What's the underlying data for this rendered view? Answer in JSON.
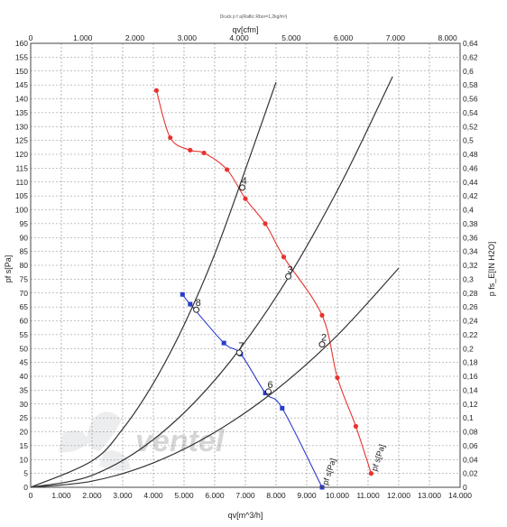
{
  "chart_data": {
    "type": "line",
    "title": "Druck p f a(Raflic Rbor=1,2kg/m³)",
    "x_bottom": {
      "label": "qv[m^3/h]",
      "range": [
        0,
        14000
      ],
      "ticks": [
        {
          "v": 0,
          "t": "0"
        },
        {
          "v": 1000,
          "t": "1.000"
        },
        {
          "v": 2000,
          "t": "2.000"
        },
        {
          "v": 3000,
          "t": "3.000"
        },
        {
          "v": 4000,
          "t": "4.000"
        },
        {
          "v": 5000,
          "t": "5.000"
        },
        {
          "v": 6000,
          "t": "6.000"
        },
        {
          "v": 7000,
          "t": "7.000"
        },
        {
          "v": 8000,
          "t": "8.000"
        },
        {
          "v": 9000,
          "t": "9.000"
        },
        {
          "v": 10000,
          "t": "10.000"
        },
        {
          "v": 11000,
          "t": "11.000"
        },
        {
          "v": 12000,
          "t": "12.000"
        },
        {
          "v": 13000,
          "t": "13.000"
        },
        {
          "v": 14000,
          "t": "14.000"
        }
      ]
    },
    "x_top": {
      "label": "qv[cfm]",
      "range": [
        0,
        8240
      ],
      "ticks": [
        {
          "v": 0,
          "t": "0"
        },
        {
          "v": 1000,
          "t": "1.000"
        },
        {
          "v": 2000,
          "t": "2.000"
        },
        {
          "v": 3000,
          "t": "3.000"
        },
        {
          "v": 4000,
          "t": "4.000"
        },
        {
          "v": 5000,
          "t": "5.000"
        },
        {
          "v": 6000,
          "t": "6.000"
        },
        {
          "v": 7000,
          "t": "7.000"
        },
        {
          "v": 8000,
          "t": "8.000"
        }
      ]
    },
    "y_left": {
      "label": "pf s[Pa]",
      "range": [
        0,
        160
      ],
      "ticks": [
        {
          "v": 0,
          "t": "0"
        },
        {
          "v": 5,
          "t": "5"
        },
        {
          "v": 10,
          "t": "10"
        },
        {
          "v": 15,
          "t": "15"
        },
        {
          "v": 20,
          "t": "20"
        },
        {
          "v": 25,
          "t": "25"
        },
        {
          "v": 30,
          "t": "30"
        },
        {
          "v": 35,
          "t": "35"
        },
        {
          "v": 40,
          "t": "40"
        },
        {
          "v": 45,
          "t": "45"
        },
        {
          "v": 50,
          "t": "50"
        },
        {
          "v": 55,
          "t": "55"
        },
        {
          "v": 60,
          "t": "60"
        },
        {
          "v": 65,
          "t": "65"
        },
        {
          "v": 70,
          "t": "70"
        },
        {
          "v": 75,
          "t": "75"
        },
        {
          "v": 80,
          "t": "80"
        },
        {
          "v": 85,
          "t": "85"
        },
        {
          "v": 90,
          "t": "90"
        },
        {
          "v": 95,
          "t": "95"
        },
        {
          "v": 100,
          "t": "100"
        },
        {
          "v": 105,
          "t": "105"
        },
        {
          "v": 110,
          "t": "110"
        },
        {
          "v": 115,
          "t": "115"
        },
        {
          "v": 120,
          "t": "120"
        },
        {
          "v": 125,
          "t": "125"
        },
        {
          "v": 130,
          "t": "130"
        },
        {
          "v": 135,
          "t": "135"
        },
        {
          "v": 140,
          "t": "140"
        },
        {
          "v": 145,
          "t": "145"
        },
        {
          "v": 150,
          "t": "150"
        },
        {
          "v": 155,
          "t": "155"
        },
        {
          "v": 160,
          "t": "160"
        }
      ]
    },
    "y_right": {
      "label": "p fs_E[IN H2O]",
      "range": [
        0,
        0.64
      ],
      "ticks": [
        {
          "v": 0,
          "t": "0"
        },
        {
          "v": 0.02,
          "t": "0,02"
        },
        {
          "v": 0.04,
          "t": "0,04"
        },
        {
          "v": 0.06,
          "t": "0,06"
        },
        {
          "v": 0.08,
          "t": "0,08"
        },
        {
          "v": 0.1,
          "t": "0,1"
        },
        {
          "v": 0.12,
          "t": "0,12"
        },
        {
          "v": 0.14,
          "t": "0,14"
        },
        {
          "v": 0.16,
          "t": "0,16"
        },
        {
          "v": 0.18,
          "t": "0,18"
        },
        {
          "v": 0.2,
          "t": "0,2"
        },
        {
          "v": 0.22,
          "t": "0,22"
        },
        {
          "v": 0.24,
          "t": "0,24"
        },
        {
          "v": 0.26,
          "t": "0,26"
        },
        {
          "v": 0.28,
          "t": "0,28"
        },
        {
          "v": 0.3,
          "t": "0,3"
        },
        {
          "v": 0.32,
          "t": "0,32"
        },
        {
          "v": 0.34,
          "t": "0,34"
        },
        {
          "v": 0.36,
          "t": "0,36"
        },
        {
          "v": 0.38,
          "t": "0,38"
        },
        {
          "v": 0.4,
          "t": "0,4"
        },
        {
          "v": 0.42,
          "t": "0,42"
        },
        {
          "v": 0.44,
          "t": "0,44"
        },
        {
          "v": 0.46,
          "t": "0,46"
        },
        {
          "v": 0.48,
          "t": "0,48"
        },
        {
          "v": 0.5,
          "t": "0,5"
        },
        {
          "v": 0.52,
          "t": "0,52"
        },
        {
          "v": 0.54,
          "t": "0,54"
        },
        {
          "v": 0.56,
          "t": "0,56"
        },
        {
          "v": 0.58,
          "t": "0,58"
        },
        {
          "v": 0.6,
          "t": "0,6"
        },
        {
          "v": 0.62,
          "t": "0,62"
        },
        {
          "v": 0.64,
          "t": "0,64"
        }
      ]
    },
    "grid": true,
    "series": [
      {
        "name": "pf s[Pa]",
        "color": "#e8332f",
        "marker": "circle",
        "points": [
          [
            4100,
            143
          ],
          [
            4550,
            126
          ],
          [
            5200,
            121.5
          ],
          [
            5650,
            120.5
          ],
          [
            6400,
            114.5
          ],
          [
            7000,
            104
          ],
          [
            7650,
            95
          ],
          [
            8250,
            83
          ],
          [
            9500,
            62
          ],
          [
            10000,
            39.5
          ],
          [
            10600,
            22
          ],
          [
            11100,
            5
          ]
        ]
      },
      {
        "name": "pf s[Pa]",
        "color": "#2a3bd0",
        "marker": "square",
        "points": [
          [
            4950,
            69.5
          ],
          [
            5200,
            66
          ],
          [
            6300,
            52
          ],
          [
            6850,
            48
          ],
          [
            7650,
            34
          ],
          [
            8200,
            28.5
          ],
          [
            9500,
            0
          ]
        ]
      },
      {
        "name": "",
        "color": "#333333",
        "marker": "none",
        "points": [
          [
            0,
            0
          ],
          [
            2000,
            9.5
          ],
          [
            3000,
            21
          ],
          [
            4000,
            37.5
          ],
          [
            5000,
            58.5
          ],
          [
            6000,
            84
          ],
          [
            7000,
            114.5
          ],
          [
            8000,
            146
          ]
        ]
      },
      {
        "name": "",
        "color": "#333333",
        "marker": "none",
        "points": [
          [
            0,
            0
          ],
          [
            2000,
            4.3
          ],
          [
            4000,
            17.2
          ],
          [
            6000,
            38.6
          ],
          [
            8000,
            68.6
          ],
          [
            10000,
            107
          ],
          [
            11800,
            148
          ]
        ]
      },
      {
        "name": "",
        "color": "#333333",
        "marker": "none",
        "points": [
          [
            0,
            0
          ],
          [
            2000,
            2.2
          ],
          [
            4000,
            8.8
          ],
          [
            6000,
            19.8
          ],
          [
            8000,
            35.1
          ],
          [
            10000,
            54.8
          ],
          [
            12000,
            79
          ]
        ]
      }
    ],
    "operating_points": [
      {
        "label": "8",
        "x": 5400,
        "y": 64
      },
      {
        "label": "7",
        "x": 6800,
        "y": 48.5
      },
      {
        "label": "6",
        "x": 7750,
        "y": 34.5
      },
      {
        "label": "4",
        "x": 6900,
        "y": 108
      },
      {
        "label": "3",
        "x": 8400,
        "y": 76
      },
      {
        "label": "2",
        "x": 9500,
        "y": 51.5
      }
    ],
    "watermark": "ventel"
  }
}
